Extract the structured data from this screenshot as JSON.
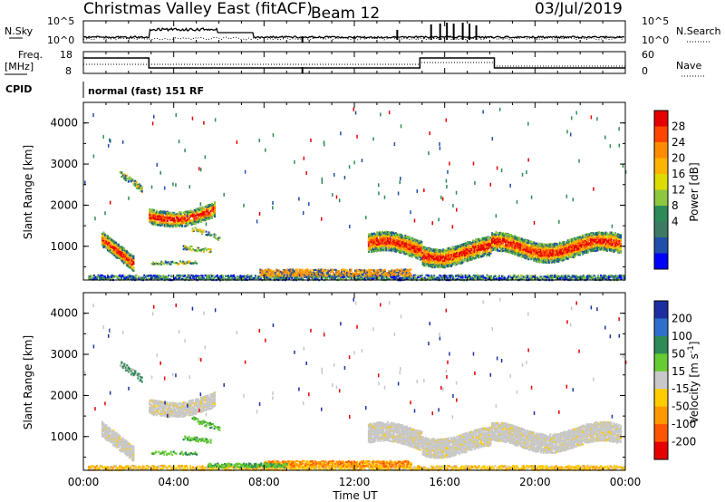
{
  "header": {
    "radar_title": "Christmas Valley East (fitACF)",
    "beam_label": "Beam 12",
    "date": "03/Jul/2019"
  },
  "summary_panels": {
    "nsky_label": "N.Sky",
    "nsky_ticks": [
      "10^5",
      "10^0"
    ],
    "nsearch_label": "N.Search",
    "nsearch_ticks": [
      "10^5",
      "10^0"
    ],
    "freq_label_line1": "Freq.",
    "freq_label_line2": "[MHz]",
    "freq_ticks": [
      "18",
      "8"
    ],
    "nave_label": "Nave",
    "nave_ticks": [
      "60",
      "0"
    ],
    "cpid_label": "CPID",
    "cpid_value": "normal (fast) 151 RF"
  },
  "chart_data": [
    {
      "type": "heatmap",
      "panel": "power",
      "ylabel": "Slant Range [km]",
      "yticks": [
        "1000",
        "2000",
        "3000",
        "4000"
      ],
      "ylim": [
        180,
        4500
      ],
      "xlim_hours": [
        0,
        24
      ],
      "colorbar_label": "Power [dB]",
      "colorbar_ticks": [
        "28",
        "24",
        "20",
        "16",
        "12",
        "8",
        "4"
      ],
      "colorbar_colors": [
        "#e60000",
        "#ff4500",
        "#ff8c00",
        "#ffb400",
        "#dcdc00",
        "#8ec63f",
        "#2e8b57",
        "#3c7a64",
        "#1f4fa8",
        "#0000ff"
      ]
    },
    {
      "type": "heatmap",
      "panel": "velocity",
      "ylabel": "Slant Range [km]",
      "yticks": [
        "1000",
        "2000",
        "3000",
        "4000"
      ],
      "ylim": [
        180,
        4500
      ],
      "xlim_hours": [
        0,
        24
      ],
      "colorbar_label": "Velocity [m s^-1]",
      "colorbar_ticks": [
        "200",
        "100",
        "50",
        "15",
        "-15",
        "-50",
        "-100",
        "-200"
      ],
      "colorbar_colors": [
        "#1c2fa0",
        "#2f6fcc",
        "#2e8b57",
        "#66cc33",
        "#c8c8c8",
        "#ffcc00",
        "#ff9900",
        "#ff5500",
        "#e60000"
      ]
    }
  ],
  "xaxis": {
    "ticks": [
      "00:00",
      "04:00",
      "08:00",
      "12:00",
      "16:00",
      "20:00",
      "00:00"
    ],
    "label": "Time UT"
  }
}
